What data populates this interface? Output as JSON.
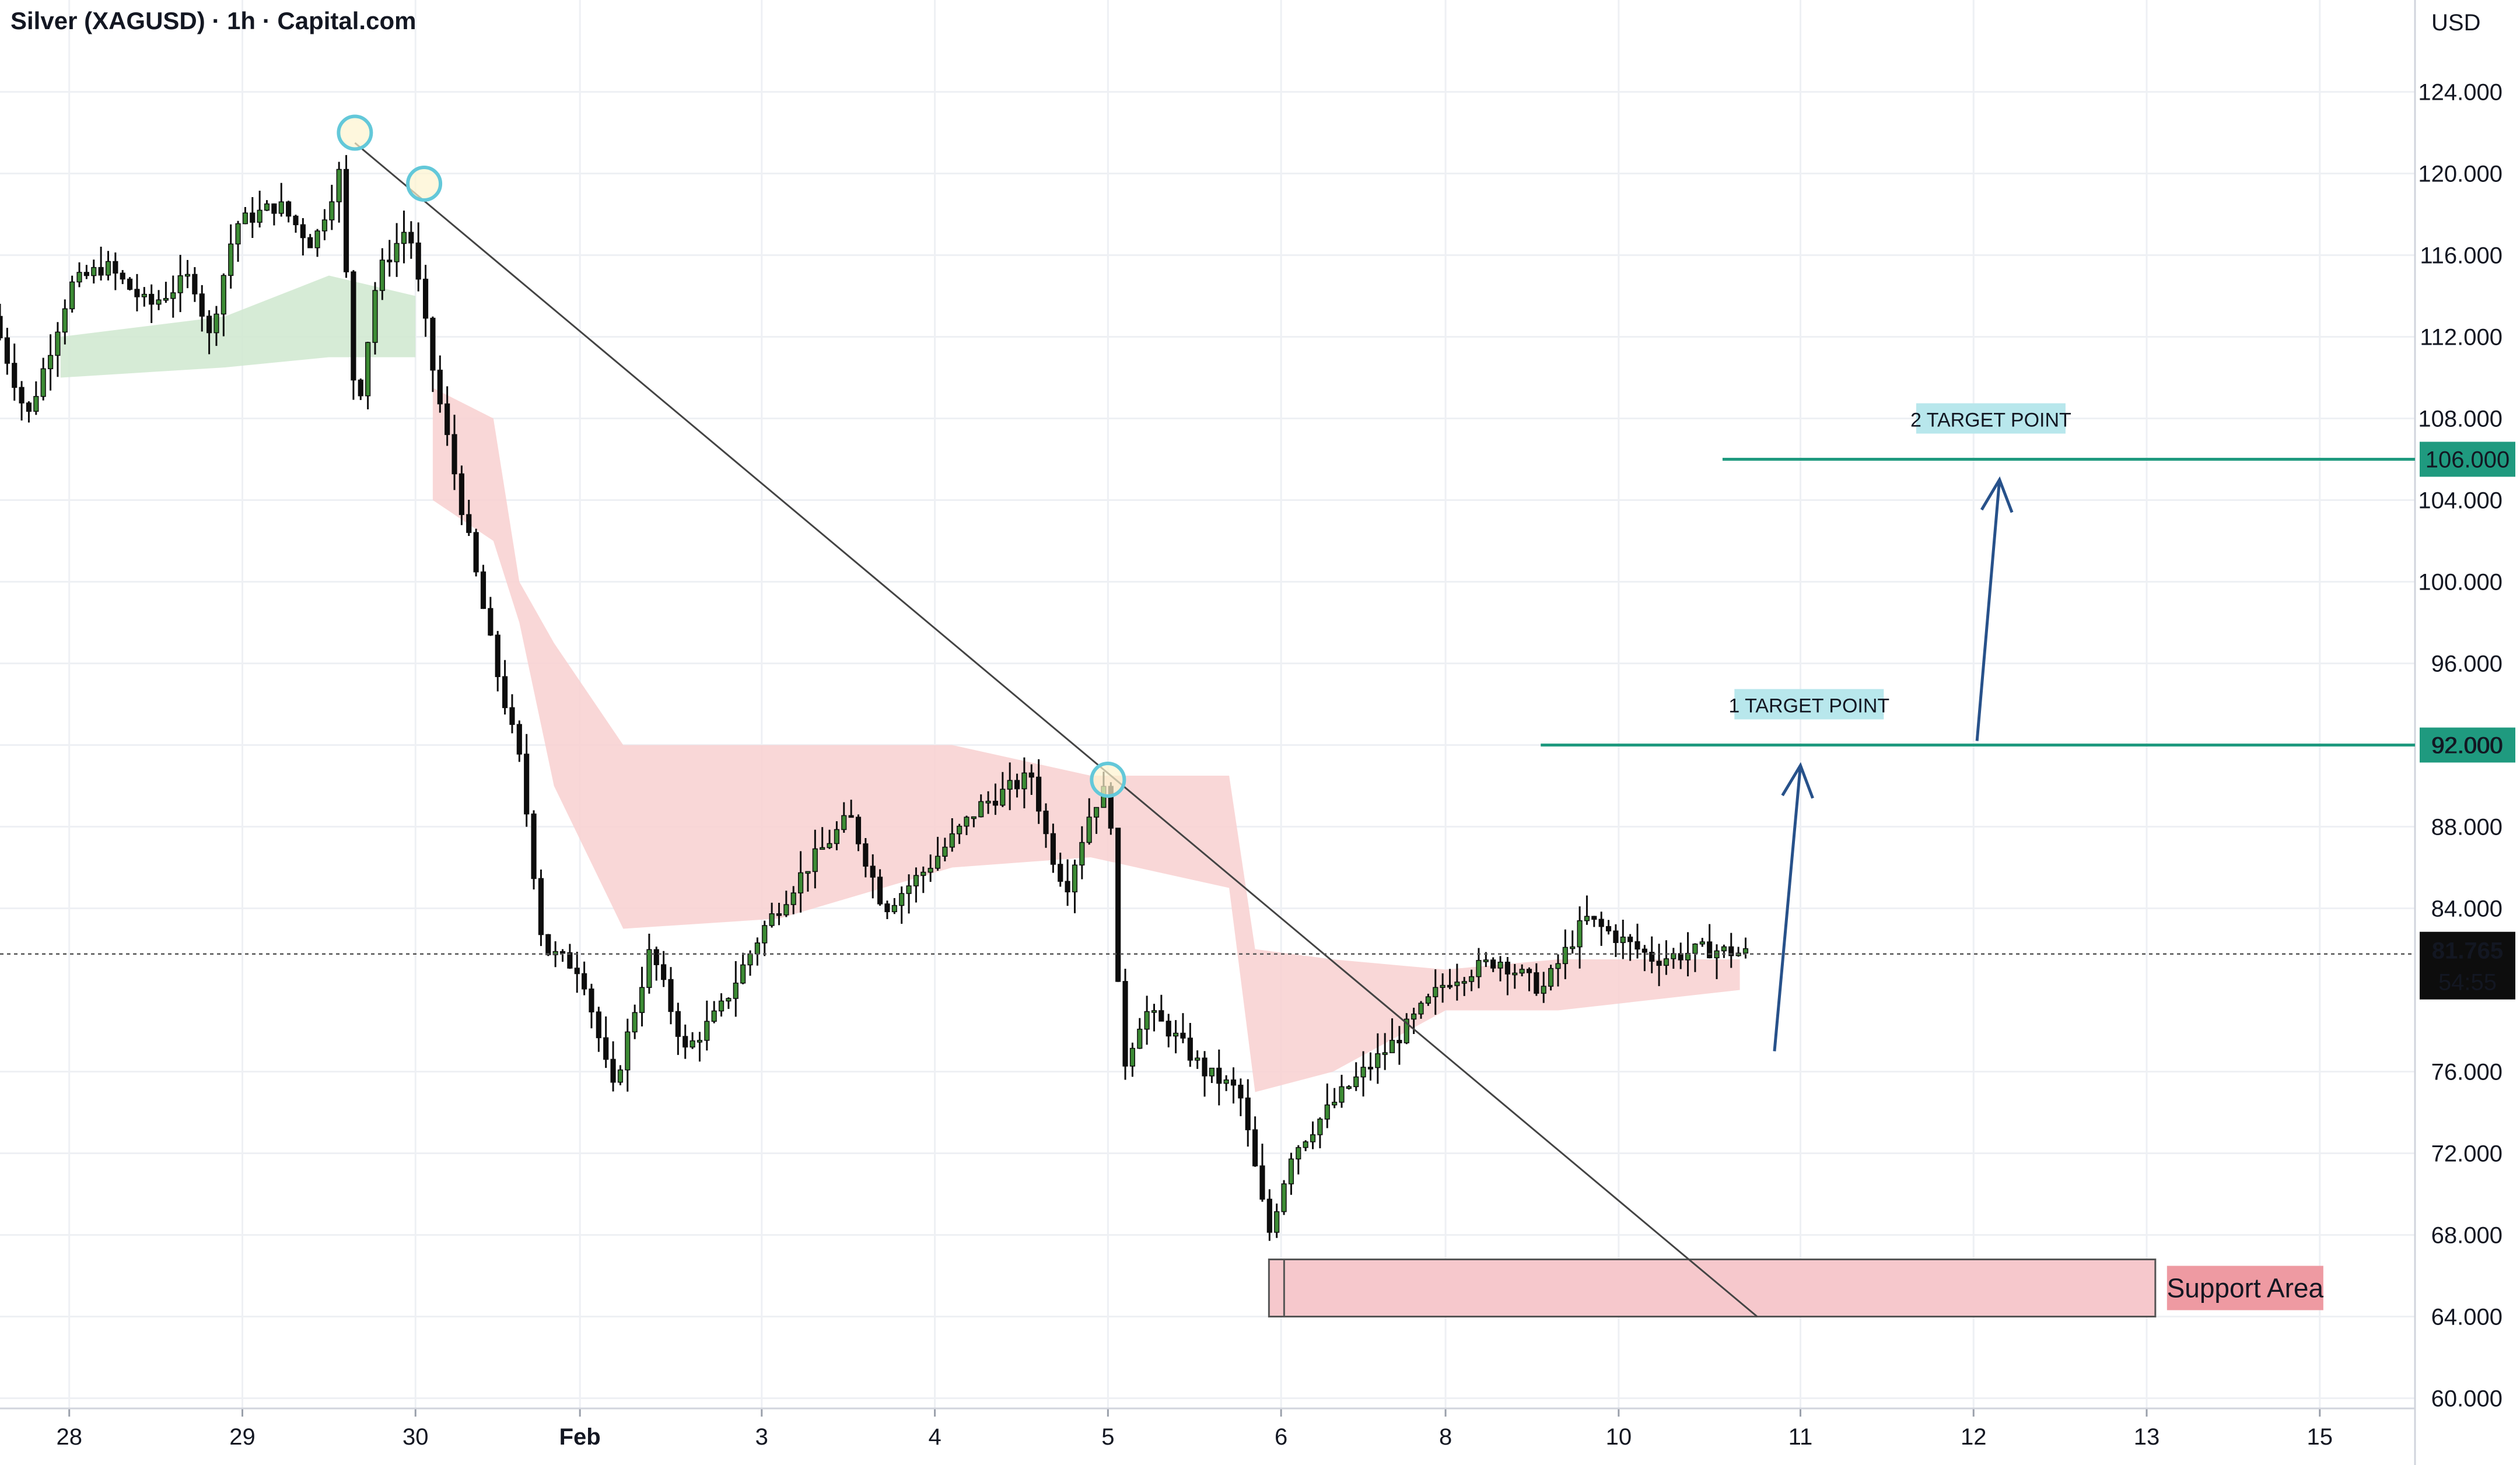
{
  "header": {
    "title": "Silver (XAGUSD) · 1h · Capital.com",
    "currency": "USD"
  },
  "colors": {
    "background": "#ffffff",
    "grid": "#eef0f4",
    "bull": "#3c8b34",
    "bear": "#0d0d0d",
    "cloud_bull": "#cfe8cf",
    "cloud_bear": "#f8d0d0",
    "target_line": "#1f9a7f",
    "target_label_bg": "#b8e7ec",
    "price_tag_bg": "#1f9a7f",
    "current_tag_bg": "#0d0d0d",
    "arrow": "#27518a",
    "trendline": "#444444",
    "support_fill": "#f6c8cc",
    "support_label_bg": "#ee9aa2",
    "circle": "#63c8d9"
  },
  "chart_data": {
    "type": "candlestick",
    "title": "Silver (XAGUSD) · 1h · Capital.com",
    "x_ticks": [
      "28",
      "29",
      "30",
      "Feb",
      "3",
      "4",
      "5",
      "6",
      "8",
      "10",
      "11",
      "12",
      "13",
      "15"
    ],
    "x_tick_index": [
      0.4,
      1.4,
      2.4,
      3.35,
      4.4,
      5.4,
      6.4,
      7.4,
      8.35,
      9.35,
      10.4,
      11.4,
      12.4,
      13.4
    ],
    "y_ticks": [
      "124.000",
      "120.000",
      "116.000",
      "112.000",
      "108.000",
      "104.000",
      "100.000",
      "96.000",
      "92.000",
      "88.000",
      "84.000",
      "76.000",
      "72.000",
      "68.000",
      "64.000",
      "60.000"
    ],
    "y_tick_values": [
      124,
      120,
      116,
      112,
      108,
      104,
      100,
      96,
      92,
      88,
      84,
      76,
      72,
      68,
      64,
      60
    ],
    "ylim": [
      59.5,
      128.5
    ],
    "grid": true,
    "price_path": [
      {
        "t": 0.0,
        "p": 113
      },
      {
        "t": 0.2,
        "p": 108
      },
      {
        "t": 0.45,
        "p": 114.5
      },
      {
        "t": 0.65,
        "p": 115.5
      },
      {
        "t": 0.9,
        "p": 113.5
      },
      {
        "t": 1.15,
        "p": 115
      },
      {
        "t": 1.25,
        "p": 112
      },
      {
        "t": 1.4,
        "p": 117.5
      },
      {
        "t": 1.65,
        "p": 118.5
      },
      {
        "t": 1.85,
        "p": 116.5
      },
      {
        "t": 2.0,
        "p": 120
      },
      {
        "t": 2.1,
        "p": 108
      },
      {
        "t": 2.22,
        "p": 115
      },
      {
        "t": 2.4,
        "p": 117.5
      },
      {
        "t": 2.55,
        "p": 110
      },
      {
        "t": 2.7,
        "p": 104
      },
      {
        "t": 2.9,
        "p": 96
      },
      {
        "t": 3.05,
        "p": 91
      },
      {
        "t": 3.18,
        "p": 82
      },
      {
        "t": 3.4,
        "p": 81
      },
      {
        "t": 3.58,
        "p": 75
      },
      {
        "t": 3.8,
        "p": 82
      },
      {
        "t": 4.0,
        "p": 77
      },
      {
        "t": 4.2,
        "p": 79
      },
      {
        "t": 4.45,
        "p": 83
      },
      {
        "t": 4.7,
        "p": 86
      },
      {
        "t": 4.95,
        "p": 88.5
      },
      {
        "t": 5.15,
        "p": 84
      },
      {
        "t": 5.4,
        "p": 86
      },
      {
        "t": 5.7,
        "p": 89
      },
      {
        "t": 6.0,
        "p": 90.5
      },
      {
        "t": 6.1,
        "p": 87
      },
      {
        "t": 6.2,
        "p": 85
      },
      {
        "t": 6.35,
        "p": 89
      },
      {
        "t": 6.45,
        "p": 90
      },
      {
        "t": 6.52,
        "p": 76
      },
      {
        "t": 6.65,
        "p": 79
      },
      {
        "t": 6.8,
        "p": 78
      },
      {
        "t": 7.0,
        "p": 76
      },
      {
        "t": 7.2,
        "p": 75
      },
      {
        "t": 7.37,
        "p": 68
      },
      {
        "t": 7.5,
        "p": 72
      },
      {
        "t": 7.8,
        "p": 75
      },
      {
        "t": 8.1,
        "p": 77.5
      },
      {
        "t": 8.4,
        "p": 80.5
      },
      {
        "t": 8.7,
        "p": 81.5
      },
      {
        "t": 8.95,
        "p": 80
      },
      {
        "t": 9.2,
        "p": 83.5
      },
      {
        "t": 9.4,
        "p": 82.5
      },
      {
        "t": 9.6,
        "p": 81.5
      },
      {
        "t": 9.9,
        "p": 82
      },
      {
        "t": 10.1,
        "p": 81.8
      }
    ],
    "cloud_bull": [
      {
        "t": 0.35,
        "lo": 110,
        "hi": 112
      },
      {
        "t": 1.3,
        "lo": 110.5,
        "hi": 113
      },
      {
        "t": 1.9,
        "lo": 111,
        "hi": 115
      },
      {
        "t": 2.4,
        "lo": 111,
        "hi": 114
      }
    ],
    "cloud_bear": [
      {
        "t": 2.5,
        "lo": 104,
        "hi": 109.5
      },
      {
        "t": 2.85,
        "lo": 102,
        "hi": 108
      },
      {
        "t": 3.0,
        "lo": 98,
        "hi": 100
      },
      {
        "t": 3.2,
        "lo": 90,
        "hi": 97
      },
      {
        "t": 3.6,
        "lo": 83,
        "hi": 92
      },
      {
        "t": 4.5,
        "lo": 83.5,
        "hi": 92
      },
      {
        "t": 5.5,
        "lo": 86,
        "hi": 92
      },
      {
        "t": 6.3,
        "lo": 86.5,
        "hi": 90.5
      },
      {
        "t": 7.1,
        "lo": 85,
        "hi": 90.5
      },
      {
        "t": 7.25,
        "lo": 75,
        "hi": 82
      },
      {
        "t": 7.7,
        "lo": 76,
        "hi": 81.5
      },
      {
        "t": 8.35,
        "lo": 79,
        "hi": 81
      },
      {
        "t": 9.0,
        "lo": 79,
        "hi": 81.5
      },
      {
        "t": 10.05,
        "lo": 80,
        "hi": 81.5
      }
    ],
    "current_price": 81.765,
    "current_price_label": "81.765",
    "countdown": "54:55",
    "targets": [
      {
        "label": "1 TARGET POINT",
        "price": 92.0,
        "price_label": "92.000",
        "t_start": 8.9,
        "t_label": 10.45
      },
      {
        "label": "2 TARGET POINT",
        "price": 106.0,
        "price_label": "106.000",
        "t_start": 9.95,
        "t_label": 11.5
      }
    ],
    "support": {
      "label": "Support Area",
      "lo": 64.0,
      "hi": 66.8,
      "t_start": 7.33,
      "t_end": 12.45
    },
    "trendline": {
      "t1": 2.05,
      "p1": 121.5,
      "t2": 10.15,
      "p2": 64.0
    },
    "touch_circles": [
      {
        "t": 2.05,
        "p": 122
      },
      {
        "t": 2.45,
        "p": 119.5
      },
      {
        "t": 6.4,
        "p": 90.3
      }
    ],
    "arrows": [
      {
        "t1": 10.25,
        "p1": 77.0,
        "t2": 10.4,
        "p2": 91.0
      },
      {
        "t1": 11.42,
        "p1": 92.2,
        "t2": 11.55,
        "p2": 105.0
      }
    ]
  }
}
